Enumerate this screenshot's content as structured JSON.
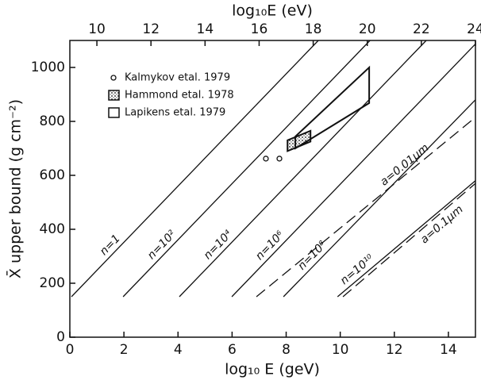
{
  "chart_data": {
    "type": "line",
    "x_label": "log₁₀ E (geV)",
    "x2_label": "log₁₀E (eV)",
    "y_label": "X̄ upper bound (g cm⁻²)",
    "xlim": [
      0,
      15
    ],
    "xticks": [
      0,
      2,
      4,
      6,
      8,
      10,
      12,
      14
    ],
    "x2lim": [
      9,
      24
    ],
    "x2ticks": [
      10,
      12,
      14,
      16,
      18,
      20,
      22,
      24
    ],
    "ylim": [
      0,
      1100
    ],
    "yticks": [
      0,
      200,
      400,
      600,
      800,
      1000
    ],
    "color": "#111111",
    "series": [
      {
        "name": "n=1",
        "dashed": false,
        "x": [
          0.06,
          9.19
        ],
        "values": [
          150,
          1100
        ]
      },
      {
        "name": "n=10²",
        "dashed": false,
        "x": [
          1.97,
          11.1
        ],
        "values": [
          150,
          1100
        ]
      },
      {
        "name": "n=10⁴",
        "dashed": false,
        "x": [
          4.05,
          13.18
        ],
        "values": [
          150,
          1100
        ]
      },
      {
        "name": "n=10⁶",
        "dashed": false,
        "x": [
          5.99,
          15
        ],
        "values": [
          150,
          1087
        ]
      },
      {
        "name": "n=10⁸",
        "dashed": false,
        "x": [
          7.9,
          15
        ],
        "values": [
          150,
          880
        ]
      },
      {
        "name": "n=10¹⁰",
        "dashed": false,
        "x": [
          9.9,
          15
        ],
        "values": [
          150,
          580
        ]
      },
      {
        "name": "a=0.01μm",
        "dashed": true,
        "x": [
          6.9,
          15
        ],
        "values": [
          150,
          815
        ]
      },
      {
        "name": "a=0.1μm",
        "dashed": true,
        "x": [
          10.1,
          15
        ],
        "values": [
          150,
          570
        ]
      }
    ],
    "observations": [
      {
        "name": "Kalmykov etal. 1979",
        "marker": "circle",
        "x": [
          7.25,
          7.75
        ],
        "values": [
          662,
          662
        ]
      },
      {
        "name": "Hammond etal. 1978",
        "marker": "hatched",
        "x": [
          8.05,
          8.05,
          8.9,
          8.9
        ],
        "values": [
          690,
          730,
          765,
          725
        ]
      },
      {
        "name": "Lapikens etal. 1979",
        "marker": "outline",
        "x": [
          8.34,
          8.34,
          11.07,
          11.07
        ],
        "values": [
          700,
          744,
          1000,
          868
        ]
      }
    ]
  }
}
